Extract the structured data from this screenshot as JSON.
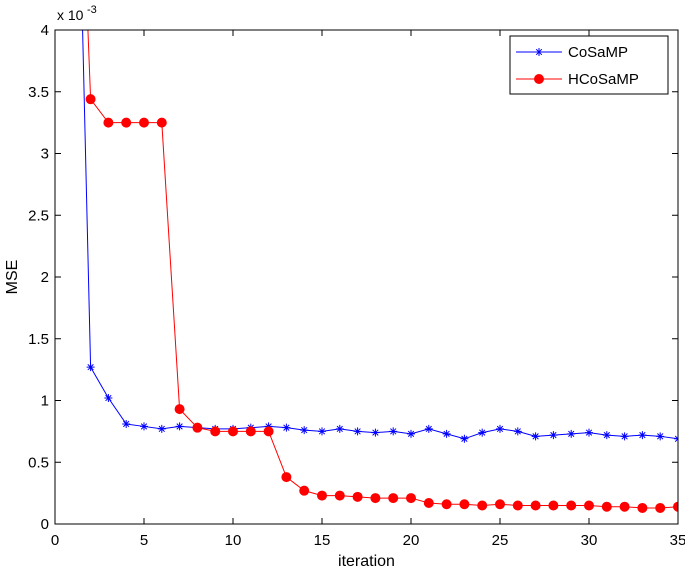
{
  "chart_data": {
    "type": "line",
    "xlabel": "iteration",
    "ylabel": "MSE",
    "y_multiplier_label": "x 10",
    "y_multiplier_exponent": "-3",
    "xlim": [
      0,
      35
    ],
    "ylim": [
      0,
      4
    ],
    "xticks": [
      "0",
      "5",
      "10",
      "15",
      "20",
      "25",
      "30",
      "35"
    ],
    "yticks": [
      "0",
      "0.5",
      "1",
      "1.5",
      "2",
      "2.5",
      "3",
      "3.5",
      "4"
    ],
    "grid": false,
    "legend_position": "top-right",
    "series": [
      {
        "name": "CoSaMP",
        "color": "#0000ff",
        "marker": "star",
        "x": [
          1.55,
          2,
          3,
          4,
          5,
          6,
          7,
          8,
          9,
          10,
          11,
          12,
          13,
          14,
          15,
          16,
          17,
          18,
          19,
          20,
          21,
          22,
          23,
          24,
          25,
          26,
          27,
          28,
          29,
          30,
          31,
          32,
          33,
          34,
          35
        ],
        "values": [
          4.0,
          1.27,
          1.02,
          0.81,
          0.79,
          0.77,
          0.79,
          0.78,
          0.77,
          0.77,
          0.78,
          0.79,
          0.78,
          0.76,
          0.75,
          0.77,
          0.75,
          0.74,
          0.75,
          0.73,
          0.77,
          0.73,
          0.69,
          0.74,
          0.77,
          0.75,
          0.71,
          0.72,
          0.73,
          0.74,
          0.72,
          0.71,
          0.72,
          0.71,
          0.69
        ]
      },
      {
        "name": "HCoSaMP",
        "color": "#ff0000",
        "marker": "circle",
        "x": [
          1.85,
          2,
          3,
          4,
          5,
          6,
          7,
          8,
          9,
          10,
          11,
          12,
          13,
          14,
          15,
          16,
          17,
          18,
          19,
          20,
          21,
          22,
          23,
          24,
          25,
          26,
          27,
          28,
          29,
          30,
          31,
          32,
          33,
          34,
          35
        ],
        "values": [
          4.0,
          3.44,
          3.25,
          3.25,
          3.25,
          3.25,
          0.93,
          0.78,
          0.75,
          0.75,
          0.75,
          0.75,
          0.38,
          0.27,
          0.23,
          0.23,
          0.22,
          0.21,
          0.21,
          0.21,
          0.17,
          0.16,
          0.16,
          0.15,
          0.16,
          0.15,
          0.15,
          0.15,
          0.15,
          0.15,
          0.14,
          0.14,
          0.13,
          0.13,
          0.14
        ]
      }
    ]
  }
}
